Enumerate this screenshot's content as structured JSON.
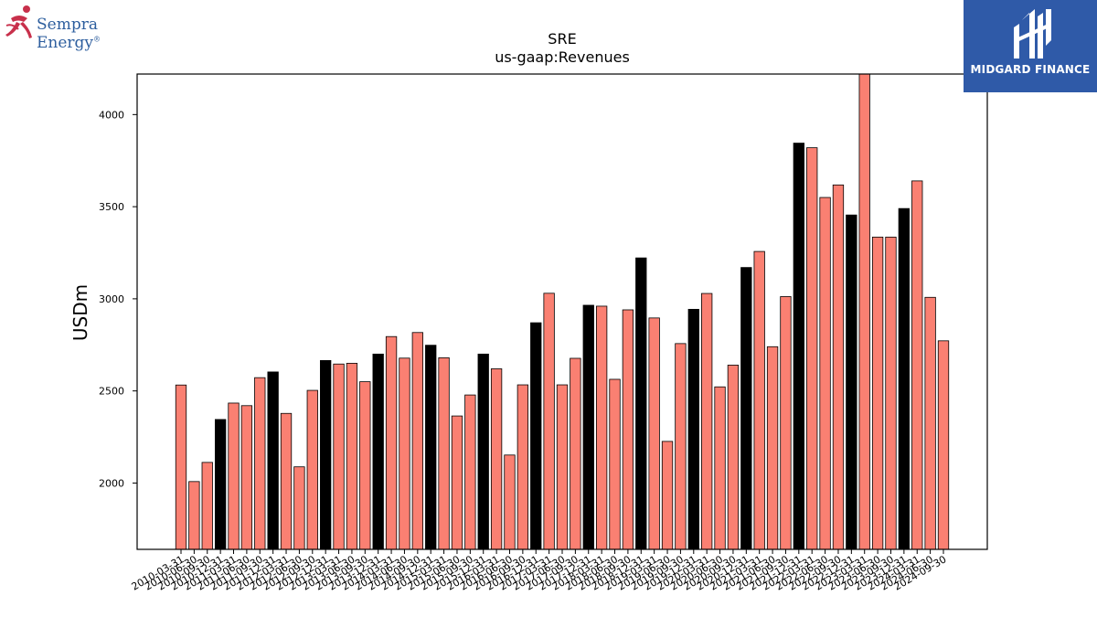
{
  "logos": {
    "left": "Sempra Energy",
    "left_mark": "®",
    "right": "MIDGARD FINANCE"
  },
  "colors": {
    "bar_default": "#fa8072",
    "bar_highlight": "#000000",
    "bar_edge": "#000000"
  },
  "chart_data": {
    "type": "bar",
    "title": "SRE",
    "subtitle": "us-gaap:Revenues",
    "xlabel": "",
    "ylabel": "USDm",
    "ylim": [
      1640,
      4220
    ],
    "yticks": [
      2000,
      2500,
      3000,
      3500,
      4000
    ],
    "grid": false,
    "categories": [
      "2010-03-31",
      "2010-06-30",
      "2010-09-30",
      "2010-12-31",
      "2011-03-31",
      "2011-06-30",
      "2011-09-30",
      "2011-12-31",
      "2012-03-31",
      "2012-06-30",
      "2012-09-30",
      "2012-12-31",
      "2013-03-31",
      "2013-06-30",
      "2013-09-30",
      "2013-12-31",
      "2014-03-31",
      "2014-06-30",
      "2014-09-30",
      "2014-12-31",
      "2015-03-31",
      "2015-06-30",
      "2015-09-30",
      "2015-12-31",
      "2016-03-31",
      "2016-06-30",
      "2016-09-30",
      "2016-12-31",
      "2017-03-31",
      "2017-06-30",
      "2017-09-30",
      "2017-12-31",
      "2018-03-31",
      "2018-06-30",
      "2018-09-30",
      "2018-12-31",
      "2019-03-31",
      "2019-06-30",
      "2019-09-30",
      "2019-12-31",
      "2020-03-31",
      "2020-06-30",
      "2020-09-30",
      "2020-12-31",
      "2021-03-31",
      "2021-06-30",
      "2021-09-30",
      "2021-12-31",
      "2022-03-31",
      "2022-06-30",
      "2022-09-30",
      "2022-12-31",
      "2023-03-31",
      "2023-06-30",
      "2023-09-30",
      "2023-12-31",
      "2024-03-31",
      "2024-06-30",
      "2024-09-30"
    ],
    "values": [
      2532,
      2008,
      2112,
      2345,
      2434,
      2420,
      2572,
      2603,
      2378,
      2088,
      2503,
      2665,
      2646,
      2650,
      2550,
      2700,
      2795,
      2678,
      2817,
      2748,
      2680,
      2364,
      2478,
      2700,
      2620,
      2152,
      2533,
      2870,
      3030,
      2533,
      2677,
      2965,
      2960,
      2563,
      2940,
      3222,
      2896,
      2226,
      2757,
      2943,
      3029,
      2522,
      2640,
      3170,
      3257,
      2740,
      3012,
      3845,
      3820,
      3550,
      3618,
      3455,
      4220,
      3335,
      3335,
      3490,
      3640,
      3008,
      2772
    ],
    "highlight": [
      false,
      false,
      false,
      true,
      false,
      false,
      false,
      true,
      false,
      false,
      false,
      true,
      false,
      false,
      false,
      true,
      false,
      false,
      false,
      true,
      false,
      false,
      false,
      true,
      false,
      false,
      false,
      true,
      false,
      false,
      false,
      true,
      false,
      false,
      false,
      true,
      false,
      false,
      false,
      true,
      false,
      false,
      false,
      true,
      false,
      false,
      false,
      true,
      false,
      false,
      false,
      true,
      false,
      false,
      false,
      true,
      false,
      false,
      false
    ]
  }
}
